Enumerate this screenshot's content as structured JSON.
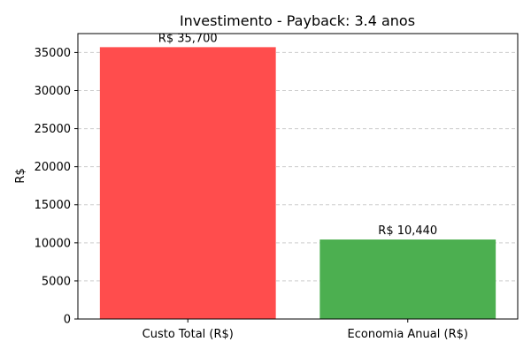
{
  "chart_data": {
    "type": "bar",
    "title": "Investimento - Payback: 3.4 anos",
    "xlabel": "",
    "ylabel": "R$",
    "categories": [
      "Custo Total (R$)",
      "Economia Anual (R$)"
    ],
    "values": [
      35700,
      10440
    ],
    "data_labels": [
      "R$ 35,700",
      "R$ 10,440"
    ],
    "colors": [
      "#ff4d4d",
      "#4caf50"
    ],
    "ylim": [
      0,
      37485
    ],
    "yticks": [
      0,
      5000,
      10000,
      15000,
      20000,
      25000,
      30000,
      35000
    ],
    "grid": "y-dashed",
    "grid_color": "#cccccc"
  }
}
